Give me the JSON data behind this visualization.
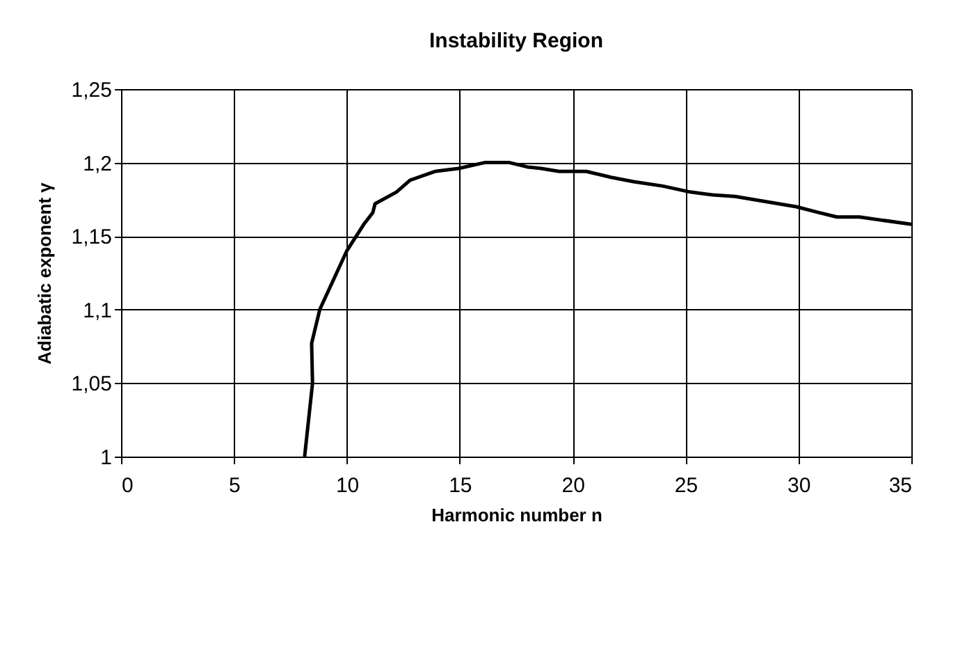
{
  "chart_data": {
    "type": "line",
    "title": "Instability Region",
    "xlabel": "Harmonic number n",
    "ylabel": "Adiabatic exponent γ",
    "xlim": [
      0,
      35
    ],
    "xticks": [
      0,
      5,
      10,
      15,
      20,
      25,
      30,
      35
    ],
    "ylim": [
      1,
      1.25
    ],
    "yticks": [
      {
        "value": 1,
        "label": "1"
      },
      {
        "value": 1.05,
        "label": "1,05"
      },
      {
        "value": 1.1,
        "label": "1,1"
      },
      {
        "value": 1.15,
        "label": "1,15"
      },
      {
        "value": 1.2,
        "label": "1,2"
      },
      {
        "value": 1.25,
        "label": "1,25"
      }
    ],
    "grid": true,
    "marker": "none",
    "line_style": "solid",
    "series": [
      {
        "color": "#000000",
        "x": [
          8.13,
          8.48,
          8.44,
          8.8,
          10.0,
          10.75,
          11.15,
          11.25,
          12.2,
          12.8,
          13.9,
          14.95,
          16.1,
          17.2,
          18.0,
          18.6,
          19.4,
          20.6,
          21.7,
          22.7,
          24.0,
          25.2,
          26.2,
          27.2,
          29.9,
          30.9,
          31.7,
          32.7,
          35.0
        ],
        "values": [
          1.0,
          1.05,
          1.077,
          1.1,
          1.14,
          1.158,
          1.166,
          1.172,
          1.18,
          1.188,
          1.194,
          1.196,
          1.2,
          1.2,
          1.197,
          1.196,
          1.194,
          1.194,
          1.19,
          1.187,
          1.184,
          1.18,
          1.178,
          1.177,
          1.17,
          1.166,
          1.163,
          1.163,
          1.158
        ]
      }
    ]
  }
}
